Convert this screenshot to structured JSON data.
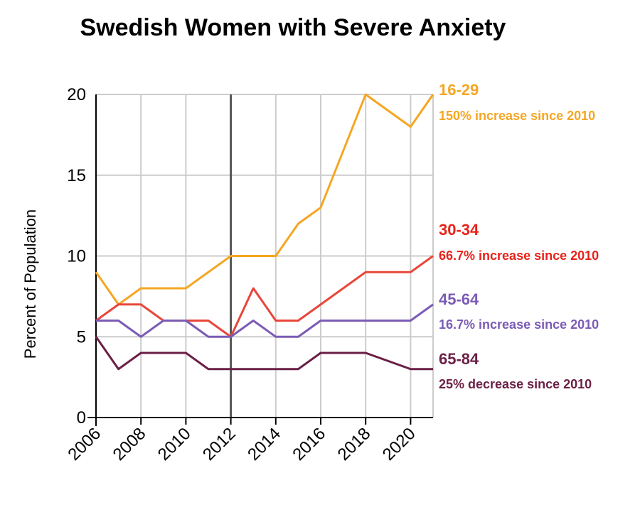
{
  "chart_data": {
    "type": "line",
    "title": "Swedish Women with Severe Anxiety",
    "xlabel": "",
    "ylabel": "Percent of Population",
    "x": [
      2006,
      2007,
      2008,
      2009,
      2010,
      2011,
      2012,
      2013,
      2014,
      2015,
      2016,
      2017,
      2018,
      2019,
      2020,
      2021
    ],
    "x_ticks": [
      "2006",
      "2008",
      "2010",
      "2012",
      "2014",
      "2016",
      "2018",
      "2020"
    ],
    "y_ticks": [
      "0",
      "5",
      "10",
      "15",
      "20"
    ],
    "xlim": [
      2006,
      2021
    ],
    "ylim": [
      0,
      20
    ],
    "grid": true,
    "reference_line_x": 2012,
    "series": [
      {
        "name": "16-29",
        "color": "#F5A623",
        "values": [
          9,
          7,
          8,
          8,
          8,
          9,
          10,
          10,
          10,
          12,
          13,
          16.5,
          20,
          19,
          18,
          20
        ],
        "annotation": "150% increase since 2010"
      },
      {
        "name": "30-34",
        "color": "#E8463A",
        "label_color": "#E8221A",
        "values": [
          6,
          7,
          7,
          6,
          6,
          6,
          5,
          8,
          6,
          6,
          7,
          8,
          9,
          9,
          9,
          10
        ],
        "annotation": "66.7% increase since 2010"
      },
      {
        "name": "45-64",
        "color": "#7B5BB5",
        "values": [
          6,
          6,
          5,
          6,
          6,
          5,
          5,
          6,
          5,
          5,
          6,
          6,
          6,
          6,
          6,
          7
        ],
        "annotation": "16.7% increase since 2010"
      },
      {
        "name": "65-84",
        "color": "#6B1F45",
        "values": [
          5,
          3,
          4,
          4,
          4,
          3,
          3,
          3,
          3,
          3,
          4,
          4,
          4,
          3.5,
          3,
          3
        ],
        "annotation": "25% decrease since 2010"
      }
    ]
  }
}
